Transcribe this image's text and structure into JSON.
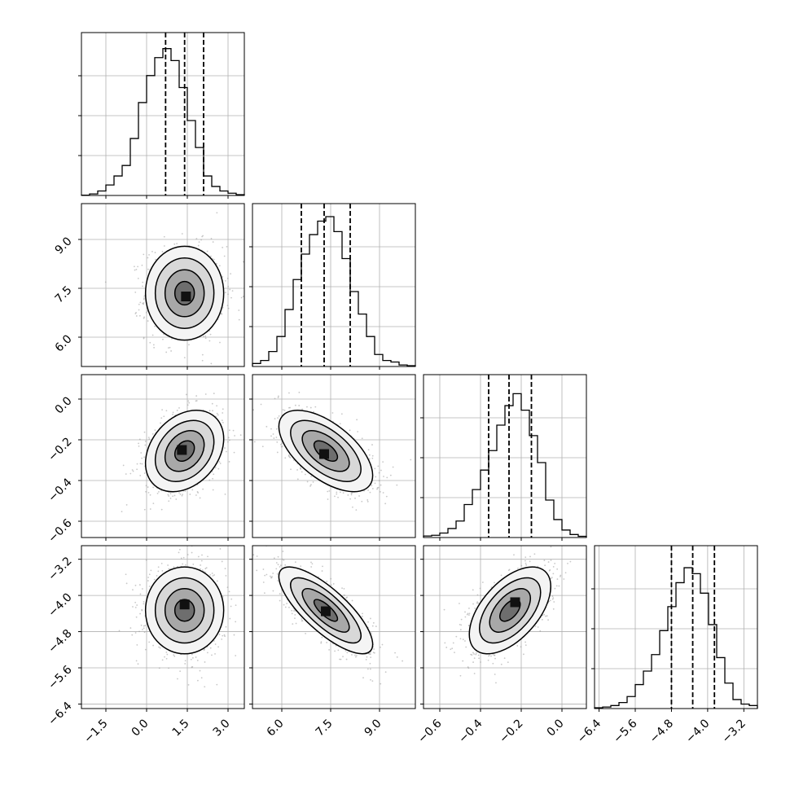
{
  "chart_data": {
    "type": "corner",
    "title": "",
    "grid": true,
    "parameters": [
      {
        "axis_ticks": [
          "−1.5",
          "0.0",
          "1.5",
          "3.0"
        ],
        "tick_values": [
          -1.5,
          0.0,
          1.5,
          3.0
        ],
        "range": [
          -2.4,
          3.6
        ],
        "quantiles": [
          0.7,
          1.4,
          2.1
        ],
        "mean": 1.4,
        "sd": 0.72
      },
      {
        "axis_ticks": [
          "6.0",
          "7.5",
          "9.0"
        ],
        "tick_values": [
          6.0,
          7.5,
          9.0
        ],
        "range": [
          5.1,
          10.1
        ],
        "quantiles": [
          6.6,
          7.3,
          8.1
        ],
        "mean": 7.35,
        "sd": 0.72
      },
      {
        "axis_ticks": [
          "−0.6",
          "−0.4",
          "−0.2",
          "0.0"
        ],
        "tick_values": [
          -0.6,
          -0.4,
          -0.2,
          0.0
        ],
        "range": [
          -0.68,
          0.12
        ],
        "quantiles": [
          -0.36,
          -0.26,
          -0.15
        ],
        "mean": -0.255,
        "sd": 0.1
      },
      {
        "axis_ticks": [
          "−6.4",
          "−5.6",
          "−4.8",
          "−4.0",
          "−3.2"
        ],
        "tick_values": [
          -6.4,
          -5.6,
          -4.8,
          -4.0,
          -3.2
        ],
        "range": [
          -6.5,
          -2.9
        ],
        "quantiles": [
          -4.8,
          -4.33,
          -3.85
        ],
        "mean": -4.33,
        "sd": 0.48
      }
    ],
    "correlations": [
      {
        "row": 1,
        "col": 0,
        "r": 0.0,
        "peak": [
          1.45,
          7.25
        ]
      },
      {
        "row": 2,
        "col": 0,
        "r": 0.3,
        "peak": [
          1.3,
          -0.25
        ]
      },
      {
        "row": 2,
        "col": 1,
        "r": -0.6,
        "peak": [
          7.3,
          -0.27
        ]
      },
      {
        "row": 3,
        "col": 0,
        "r": 0.0,
        "peak": [
          1.4,
          -4.2
        ]
      },
      {
        "row": 3,
        "col": 1,
        "r": -0.78,
        "peak": [
          7.35,
          -4.35
        ]
      },
      {
        "row": 3,
        "col": 2,
        "r": 0.55,
        "peak": [
          -0.23,
          -4.15
        ]
      }
    ],
    "histograms": [
      [
        0.002,
        0.01,
        0.03,
        0.07,
        0.13,
        0.2,
        0.38,
        0.62,
        0.8,
        0.92,
        0.98,
        0.9,
        0.72,
        0.5,
        0.32,
        0.13,
        0.06,
        0.03,
        0.015,
        0.005
      ],
      [
        0.02,
        0.04,
        0.1,
        0.2,
        0.38,
        0.58,
        0.75,
        0.88,
        0.97,
        1.0,
        0.9,
        0.72,
        0.5,
        0.35,
        0.2,
        0.08,
        0.04,
        0.03,
        0.01,
        0.005
      ],
      [
        0.01,
        0.015,
        0.03,
        0.06,
        0.11,
        0.22,
        0.32,
        0.45,
        0.58,
        0.75,
        0.88,
        0.96,
        0.85,
        0.68,
        0.5,
        0.25,
        0.12,
        0.05,
        0.02,
        0.008
      ],
      [
        0.005,
        0.01,
        0.02,
        0.04,
        0.08,
        0.16,
        0.25,
        0.36,
        0.52,
        0.68,
        0.84,
        0.94,
        0.9,
        0.77,
        0.56,
        0.34,
        0.17,
        0.06,
        0.03,
        0.02
      ]
    ],
    "contour_levels_sigma": [
      0.5,
      1.0,
      1.5,
      2.0
    ]
  }
}
